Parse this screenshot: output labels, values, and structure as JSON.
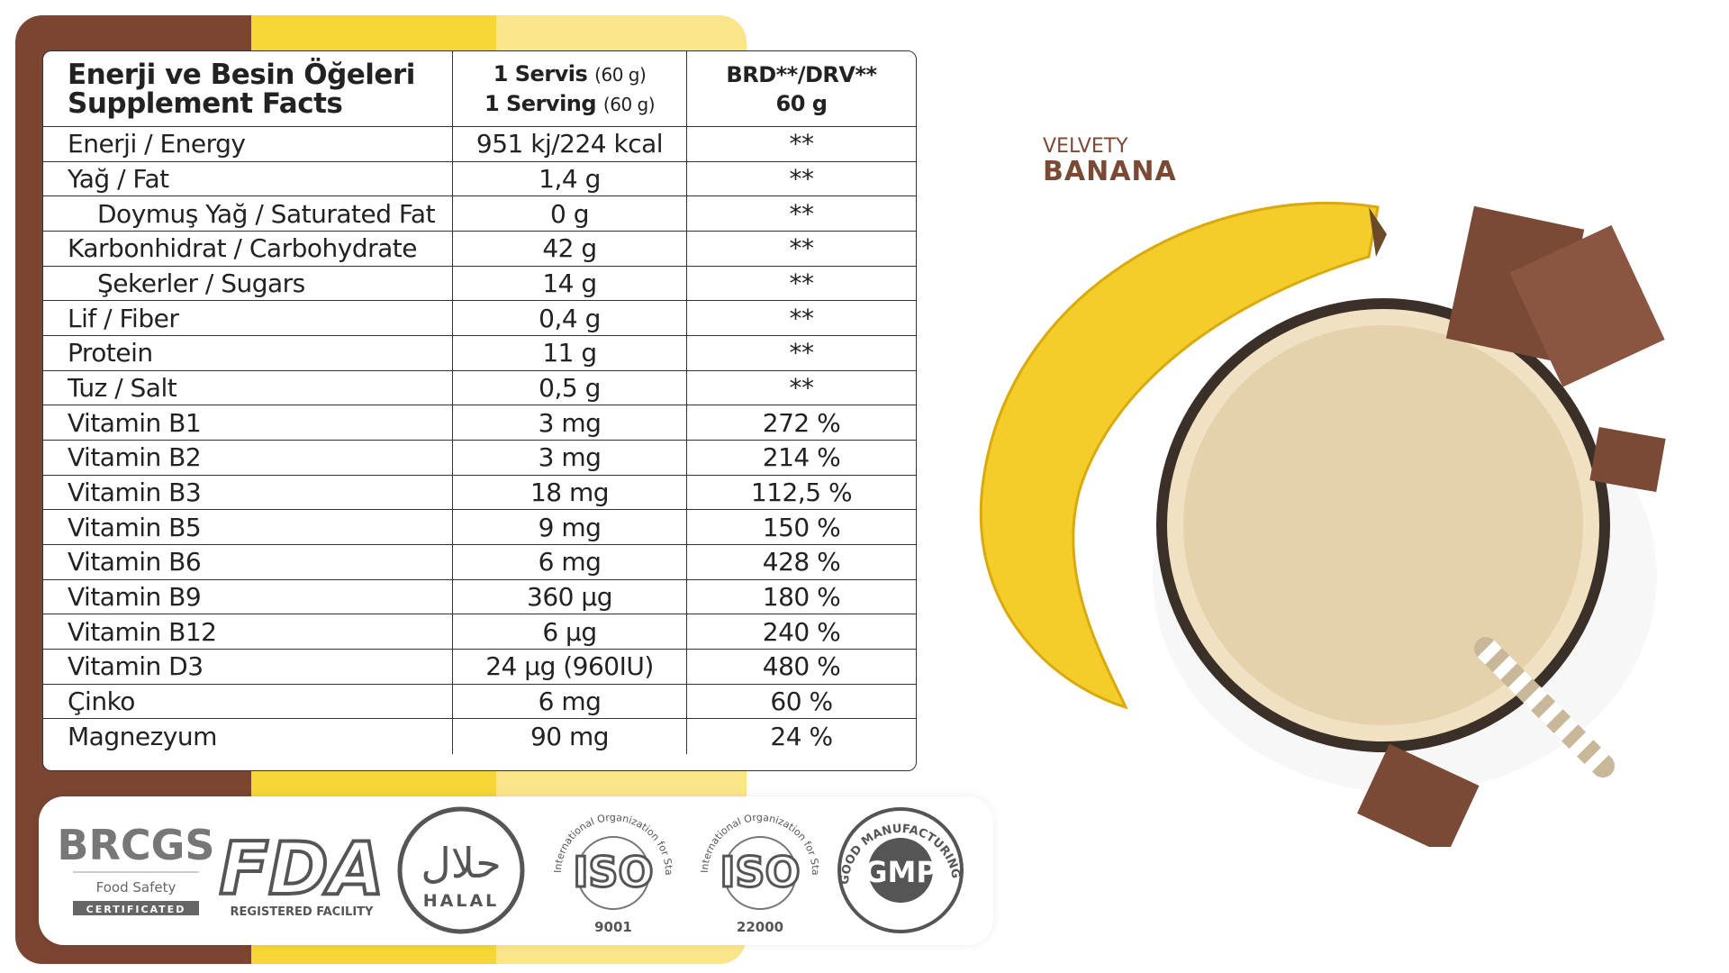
{
  "table": {
    "header": {
      "title": [
        "Enerji ve Besin Öğeleri",
        "Supplement Facts"
      ],
      "serving": [
        {
          "main": "1 Servis",
          "unit": "(60 g)"
        },
        {
          "main": "1 Serving",
          "unit": "(60 g)"
        }
      ],
      "reference": [
        "BRD**/DRV**",
        "60 g"
      ]
    },
    "rows": [
      [
        "Enerji / Energy",
        "951 kj/224 kcal",
        "**"
      ],
      [
        "Yağ / Fat",
        "1,4 g",
        "**"
      ],
      [
        "Doymuş Yağ / Saturated Fat",
        "0 g",
        "**"
      ],
      [
        "Karbonhidrat / Carbohydrate",
        "42 g",
        "**"
      ],
      [
        "Şekerler / Sugars",
        "14 g",
        "**"
      ],
      [
        "Lif / Fiber",
        "0,4 g",
        "**"
      ],
      [
        "Protein",
        "11 g",
        "**"
      ],
      [
        "Tuz / Salt",
        "0,5 g",
        "**"
      ],
      [
        "Vitamin B1",
        "3 mg",
        "272 %"
      ],
      [
        "Vitamin B2",
        "3 mg",
        "214 %"
      ],
      [
        "Vitamin B3",
        "18 mg",
        "112,5 %"
      ],
      [
        "Vitamin B5",
        "9 mg",
        "150 %"
      ],
      [
        "Vitamin B6",
        "6 mg",
        "428 %"
      ],
      [
        "Vitamin B9",
        "360 µg",
        "180 %"
      ],
      [
        "Vitamin B12",
        "6 µg",
        "240 %"
      ],
      [
        "Vitamin D3",
        "24 µg (960IU)",
        "480 %"
      ],
      [
        "Çinko",
        "6 mg",
        "60 %"
      ],
      [
        "Magnezyum",
        "90 mg",
        "24 %"
      ]
    ]
  },
  "certifications": {
    "brcgs": {
      "name": "BRCGS",
      "line": "Food Safety",
      "badge": "CERTIFICATED"
    },
    "fda": {
      "name": "FDA",
      "line": "REGISTERED FACILITY"
    },
    "halal": {
      "arabic": "حلال",
      "name": "HALAL"
    },
    "iso": [
      {
        "arc": "International Organization for Standardization",
        "name": "ISO",
        "number": "9001"
      },
      {
        "arc": "International Organization for Standardization",
        "name": "ISO",
        "number": "22000"
      }
    ],
    "gmp": {
      "arc": "GOOD MANUFACTURING PRACTICE",
      "name": "GMP"
    }
  },
  "product": {
    "tagline": "VELVETY",
    "flavor": "BANANA"
  }
}
